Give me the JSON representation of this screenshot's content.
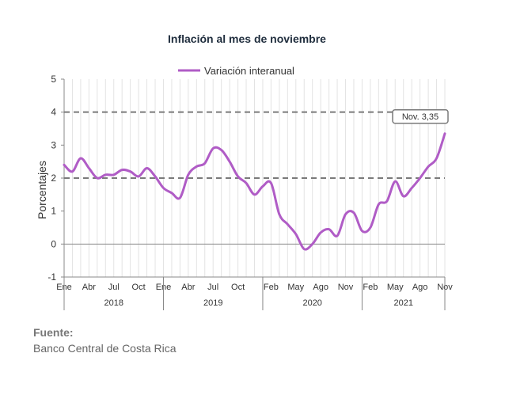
{
  "chart_data": {
    "type": "line",
    "title": "Inflación al mes de noviembre",
    "ylabel": "Porcentajes",
    "ylim": [
      -1,
      5
    ],
    "yticks": [
      -1,
      0,
      1,
      2,
      3,
      4,
      5
    ],
    "grid": "vertical",
    "legend_position": "top-center",
    "month_labels": [
      "Ene",
      "Abr",
      "Jul",
      "Oct",
      "Ene",
      "Abr",
      "Jul",
      "Oct",
      "Feb",
      "May",
      "Ago",
      "Nov",
      "Feb",
      "May",
      "Ago",
      "Nov"
    ],
    "month_label_index": [
      0,
      3,
      6,
      9,
      12,
      15,
      18,
      21,
      25,
      28,
      31,
      34,
      37,
      40,
      43,
      46
    ],
    "years": [
      {
        "label": "2018",
        "start": 0,
        "end": 12
      },
      {
        "label": "2019",
        "start": 12,
        "end": 24
      },
      {
        "label": "2020",
        "start": 24,
        "end": 36
      },
      {
        "label": "2021",
        "start": 36,
        "end": 47
      }
    ],
    "series": [
      {
        "name": "Variación interanual",
        "color": "#b05cc6",
        "values": [
          2.4,
          2.2,
          2.6,
          2.3,
          2.0,
          2.1,
          2.1,
          2.25,
          2.2,
          2.05,
          2.3,
          2.05,
          1.7,
          1.55,
          1.4,
          2.1,
          2.35,
          2.45,
          2.9,
          2.85,
          2.5,
          2.05,
          1.85,
          1.5,
          1.75,
          1.85,
          0.9,
          0.6,
          0.3,
          -0.15,
          0.0,
          0.35,
          0.45,
          0.25,
          0.9,
          0.95,
          0.4,
          0.5,
          1.2,
          1.3,
          1.9,
          1.45,
          1.7,
          2.0,
          2.35,
          2.6,
          3.35
        ]
      }
    ],
    "reference_lines": [
      2,
      4
    ],
    "annotation": {
      "text": "Nov. 3,35",
      "index": 46
    }
  },
  "source": {
    "heading": "Fuente:",
    "text": "Banco Central de Costa Rica"
  }
}
